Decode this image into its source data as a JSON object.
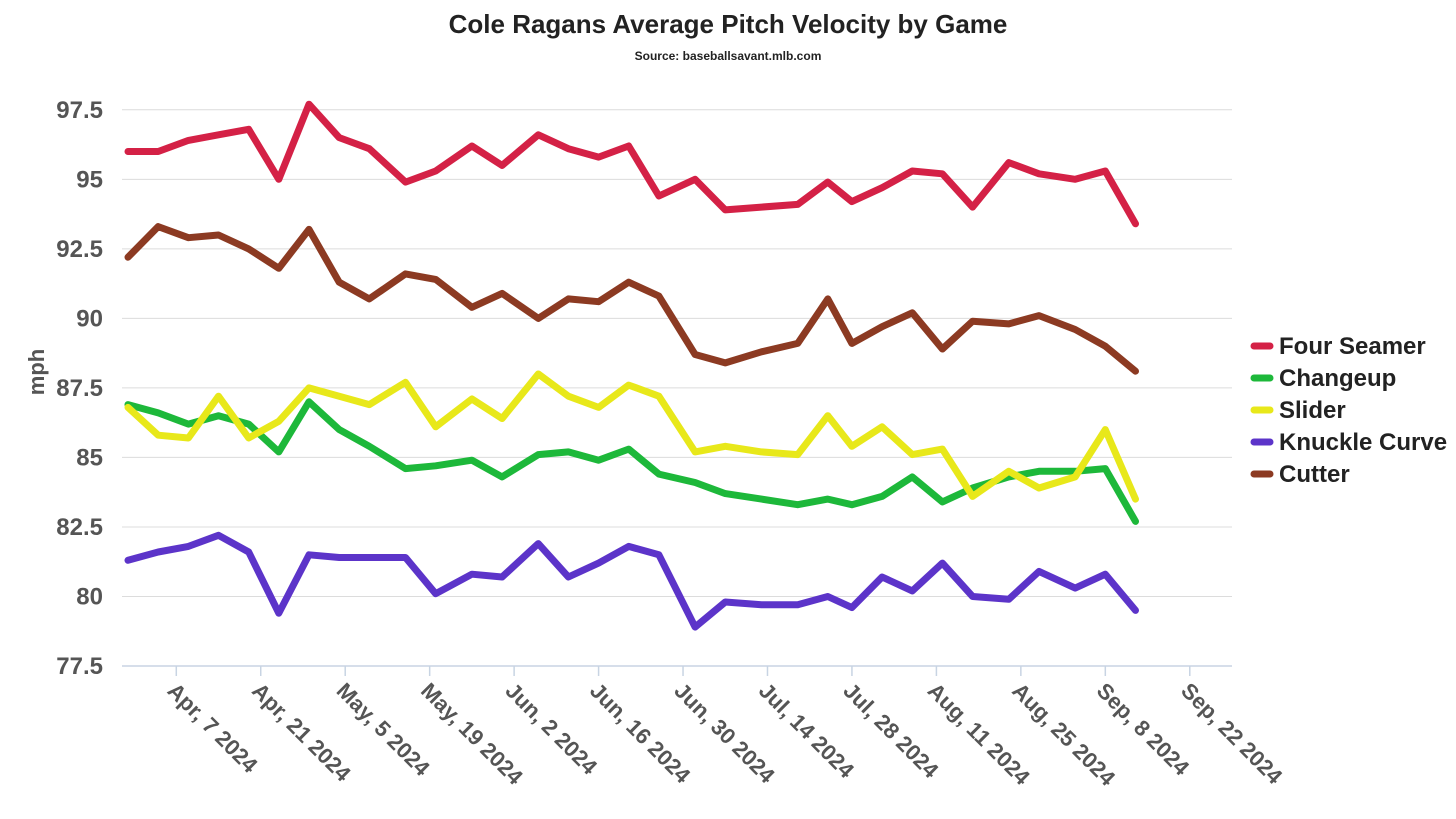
{
  "chart_data": {
    "type": "line",
    "title": "Cole Ragans Average Pitch Velocity by Game",
    "subtitle": "Source: baseballsavant.mlb.com",
    "xlabel": "",
    "ylabel": "mph",
    "ylim": [
      77.5,
      98.5
    ],
    "yticks": [
      "77.5",
      "80",
      "82.5",
      "85",
      "87.5",
      "90",
      "92.5",
      "95",
      "97.5"
    ],
    "xlim": [
      "2024-03-29",
      "2024-09-29"
    ],
    "xticks": [
      "2024-04-07",
      "2024-04-21",
      "2024-05-05",
      "2024-05-19",
      "2024-06-02",
      "2024-06-16",
      "2024-06-30",
      "2024-07-14",
      "2024-07-28",
      "2024-08-11",
      "2024-08-25",
      "2024-09-08",
      "2024-09-22"
    ],
    "xtick_labels": [
      "Apr, 7 2024",
      "Apr, 21 2024",
      "May, 5 2024",
      "May, 19 2024",
      "Jun, 2 2024",
      "Jun, 16 2024",
      "Jun, 30 2024",
      "Jul, 14 2024",
      "Jul, 28 2024",
      "Aug, 11 2024",
      "Aug, 25 2024",
      "Sep, 8 2024",
      "Sep, 22 2024"
    ],
    "grid": true,
    "legend_position": "right",
    "x": [
      "2024-03-30",
      "2024-04-04",
      "2024-04-09",
      "2024-04-14",
      "2024-04-19",
      "2024-04-24",
      "2024-04-29",
      "2024-05-04",
      "2024-05-09",
      "2024-05-15",
      "2024-05-20",
      "2024-05-26",
      "2024-05-31",
      "2024-06-06",
      "2024-06-11",
      "2024-06-16",
      "2024-06-21",
      "2024-06-26",
      "2024-07-02",
      "2024-07-07",
      "2024-07-13",
      "2024-07-19",
      "2024-07-24",
      "2024-07-28",
      "2024-08-02",
      "2024-08-07",
      "2024-08-12",
      "2024-08-17",
      "2024-08-23",
      "2024-08-28",
      "2024-09-03",
      "2024-09-08",
      "2024-09-13",
      "2024-09-18",
      "2024-09-23"
    ],
    "series": [
      {
        "name": "Four Seamer",
        "color": "#d42146",
        "values": [
          96.0,
          96.0,
          96.4,
          96.6,
          96.8,
          95.0,
          97.7,
          96.5,
          96.1,
          94.9,
          95.3,
          96.2,
          95.5,
          96.6,
          96.1,
          95.8,
          96.2,
          94.4,
          95.0,
          93.9,
          94.0,
          94.1,
          94.9,
          94.2,
          94.7,
          95.3,
          95.2,
          94.0,
          95.6,
          95.2,
          95.0,
          95.3,
          93.4,
          null,
          null
        ]
      },
      {
        "name": "Changeup",
        "color": "#1db83a",
        "values": [
          86.9,
          86.6,
          86.2,
          86.5,
          86.2,
          85.2,
          87.0,
          86.0,
          85.4,
          84.6,
          84.7,
          84.9,
          84.3,
          85.1,
          85.2,
          84.9,
          85.3,
          84.4,
          84.1,
          83.7,
          83.5,
          83.3,
          83.5,
          83.3,
          83.6,
          84.3,
          83.4,
          83.9,
          84.3,
          84.5,
          84.5,
          84.6,
          82.7,
          null,
          null
        ]
      },
      {
        "name": "Slider",
        "color": "#e8e81a",
        "values": [
          86.8,
          85.8,
          85.7,
          87.2,
          85.7,
          86.3,
          87.5,
          87.2,
          86.9,
          87.7,
          86.1,
          87.1,
          86.4,
          88.0,
          87.2,
          86.8,
          87.6,
          87.2,
          85.2,
          85.4,
          85.2,
          85.1,
          86.5,
          85.4,
          86.1,
          85.1,
          85.3,
          83.6,
          84.5,
          83.9,
          84.3,
          86.0,
          83.5,
          null,
          null
        ]
      },
      {
        "name": "Knuckle Curve",
        "color": "#5c34c9",
        "values": [
          81.3,
          81.6,
          81.8,
          82.2,
          81.6,
          79.4,
          81.5,
          81.4,
          81.4,
          81.4,
          80.1,
          80.8,
          80.7,
          81.9,
          80.7,
          81.2,
          81.8,
          81.5,
          78.9,
          79.8,
          79.7,
          79.7,
          80.0,
          79.6,
          80.7,
          80.2,
          81.2,
          80.0,
          79.9,
          80.9,
          80.3,
          80.8,
          79.5,
          null,
          null
        ]
      },
      {
        "name": "Cutter",
        "color": "#8c3a22",
        "values": [
          92.2,
          93.3,
          92.9,
          93.0,
          92.5,
          91.8,
          93.2,
          91.3,
          90.7,
          91.6,
          91.4,
          90.4,
          90.9,
          90.0,
          90.7,
          90.6,
          91.3,
          90.8,
          88.7,
          88.4,
          88.8,
          89.1,
          90.7,
          89.1,
          89.7,
          90.2,
          88.9,
          89.9,
          89.8,
          90.1,
          89.6,
          89.0,
          88.1,
          null,
          null
        ]
      }
    ]
  }
}
